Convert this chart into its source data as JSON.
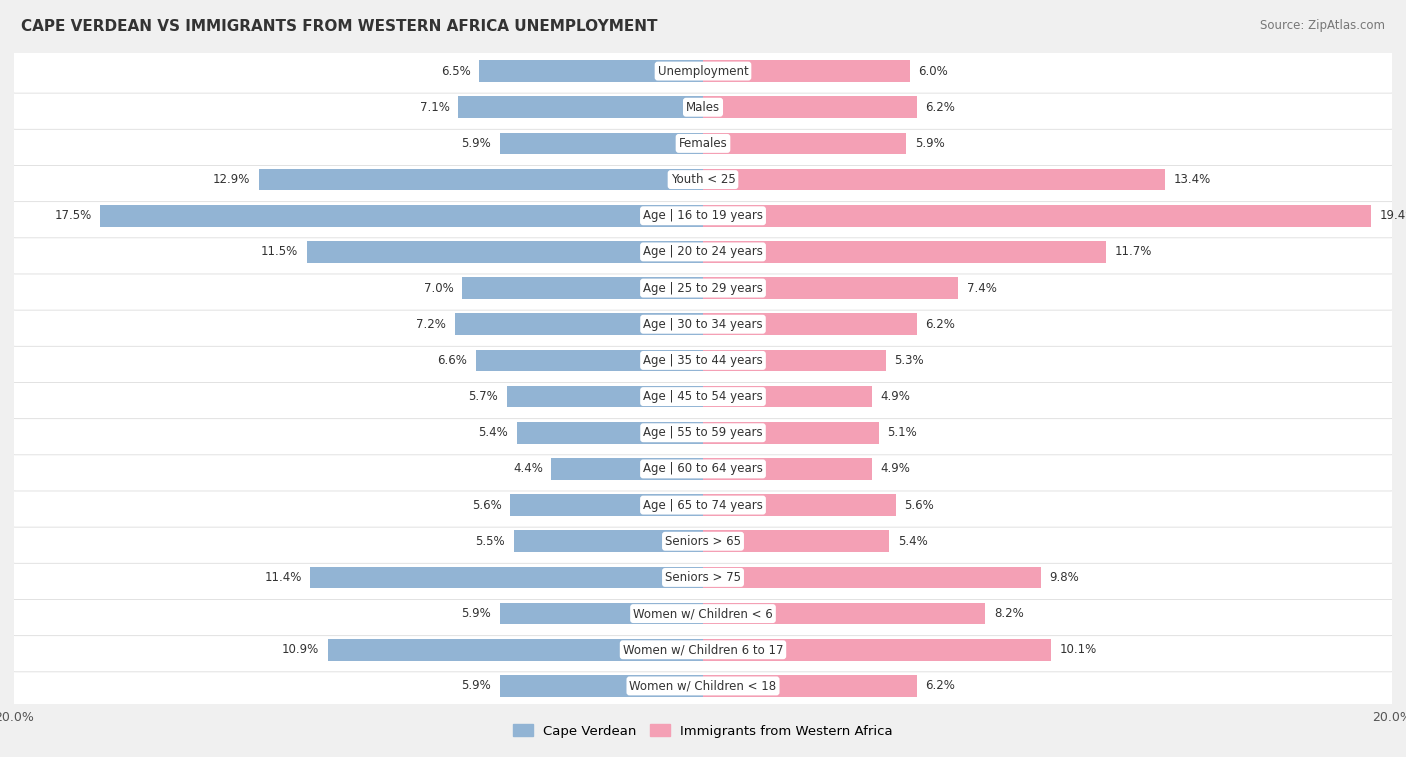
{
  "title": "CAPE VERDEAN VS IMMIGRANTS FROM WESTERN AFRICA UNEMPLOYMENT",
  "source": "Source: ZipAtlas.com",
  "categories": [
    "Unemployment",
    "Males",
    "Females",
    "Youth < 25",
    "Age | 16 to 19 years",
    "Age | 20 to 24 years",
    "Age | 25 to 29 years",
    "Age | 30 to 34 years",
    "Age | 35 to 44 years",
    "Age | 45 to 54 years",
    "Age | 55 to 59 years",
    "Age | 60 to 64 years",
    "Age | 65 to 74 years",
    "Seniors > 65",
    "Seniors > 75",
    "Women w/ Children < 6",
    "Women w/ Children 6 to 17",
    "Women w/ Children < 18"
  ],
  "cape_verdean": [
    6.5,
    7.1,
    5.9,
    12.9,
    17.5,
    11.5,
    7.0,
    7.2,
    6.6,
    5.7,
    5.4,
    4.4,
    5.6,
    5.5,
    11.4,
    5.9,
    10.9,
    5.9
  ],
  "western_africa": [
    6.0,
    6.2,
    5.9,
    13.4,
    19.4,
    11.7,
    7.4,
    6.2,
    5.3,
    4.9,
    5.1,
    4.9,
    5.6,
    5.4,
    9.8,
    8.2,
    10.1,
    6.2
  ],
  "blue_color": "#92b4d4",
  "pink_color": "#f4a0b5",
  "bg_color": "#f0f0f0",
  "row_bg_color": "#ffffff",
  "axis_limit": 20.0,
  "legend_blue": "Cape Verdean",
  "legend_pink": "Immigrants from Western Africa"
}
